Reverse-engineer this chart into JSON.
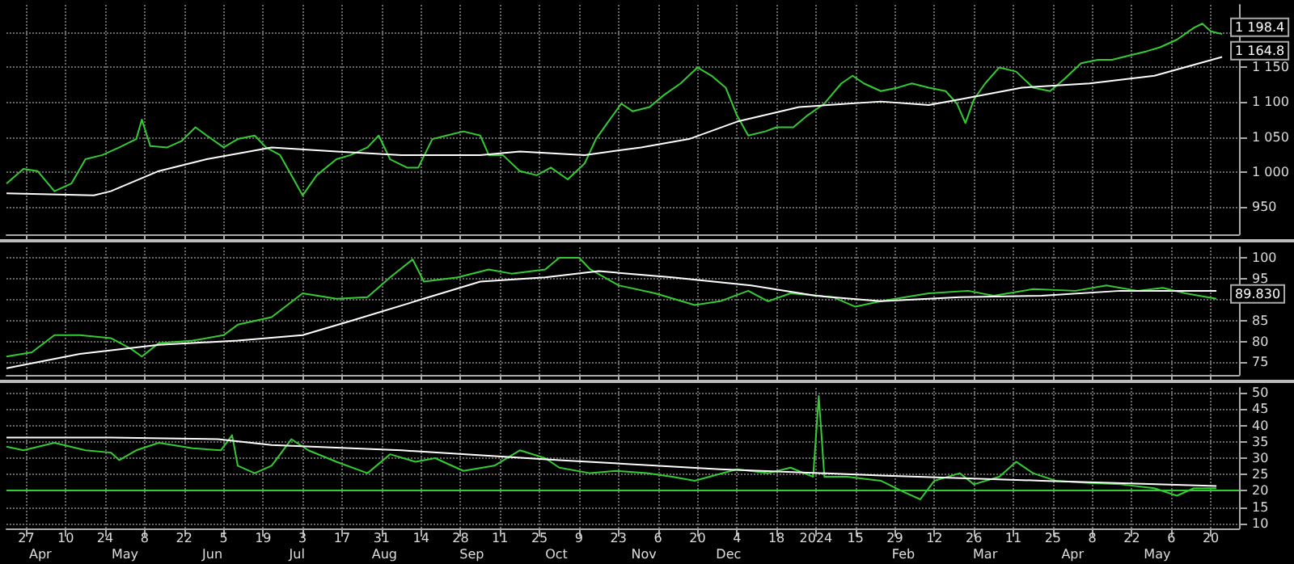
{
  "chart_data": [
    {
      "type": "line",
      "xlim": [
        "2023-03-20",
        "2024-05-30"
      ],
      "ylim": [
        910,
        1240
      ],
      "grid": true,
      "tick_labels": "y",
      "xticks": [
        {
          "value": "2023-03-27",
          "label": null
        },
        {
          "value": "2023-04-10",
          "label": null
        },
        {
          "value": "2023-04-24",
          "label": null
        },
        {
          "value": "2023-05-08",
          "label": null
        },
        {
          "value": "2023-05-22",
          "label": null
        },
        {
          "value": "2023-06-05",
          "label": null
        },
        {
          "value": "2023-06-19",
          "label": null
        },
        {
          "value": "2023-07-03",
          "label": null
        },
        {
          "value": "2023-07-17",
          "label": null
        },
        {
          "value": "2023-07-31",
          "label": null
        },
        {
          "value": "2023-08-14",
          "label": null
        },
        {
          "value": "2023-08-28",
          "label": null
        },
        {
          "value": "2023-09-11",
          "label": null
        },
        {
          "value": "2023-09-25",
          "label": null
        },
        {
          "value": "2023-10-09",
          "label": null
        },
        {
          "value": "2023-10-23",
          "label": null
        },
        {
          "value": "2023-11-06",
          "label": null
        },
        {
          "value": "2023-11-20",
          "label": null
        },
        {
          "value": "2023-12-04",
          "label": null
        },
        {
          "value": "2023-12-18",
          "label": null
        },
        {
          "value": "2024-01-01",
          "label": null
        },
        {
          "value": "2024-01-15",
          "label": null
        },
        {
          "value": "2024-01-29",
          "label": null
        },
        {
          "value": "2024-02-12",
          "label": null
        },
        {
          "value": "2024-02-26",
          "label": null
        },
        {
          "value": "2024-03-11",
          "label": null
        },
        {
          "value": "2024-03-25",
          "label": null
        },
        {
          "value": "2024-04-08",
          "label": null
        },
        {
          "value": "2024-04-22",
          "label": null
        },
        {
          "value": "2024-05-06",
          "label": null
        },
        {
          "value": "2024-05-20",
          "label": null
        }
      ],
      "yticks": [
        950,
        {
          "value": 1000,
          "label": "1 000"
        },
        {
          "value": 1050,
          "label": "1 050"
        },
        {
          "value": 1100,
          "label": "1 100"
        },
        {
          "value": 1150,
          "label": "1 150"
        },
        {
          "value": 1200,
          "label": null
        }
      ],
      "annotations": [
        {
          "text": "1 198.4",
          "x": "2024-05-24",
          "y": 1198.4
        },
        {
          "text": "1 164.8",
          "x": "2024-05-24",
          "y": 1164.8
        }
      ],
      "series": [
        {
          "color": "#33cc33",
          "x": [
            "2023-03-20",
            "2023-03-26",
            "2023-03-31",
            "2023-04-06",
            "2023-04-12",
            "2023-04-17",
            "2023-04-23",
            "2023-04-29",
            "2023-05-05",
            "2023-05-07",
            "2023-05-10",
            "2023-05-16",
            "2023-05-21",
            "2023-05-26",
            "2023-05-30",
            "2023-06-05",
            "2023-06-10",
            "2023-06-16",
            "2023-06-20",
            "2023-06-25",
            "2023-06-29",
            "2023-07-03",
            "2023-07-08",
            "2023-07-15",
            "2023-07-20",
            "2023-07-26",
            "2023-07-30",
            "2023-08-03",
            "2023-08-09",
            "2023-08-13",
            "2023-08-18",
            "2023-08-23",
            "2023-08-29",
            "2023-09-04",
            "2023-09-07",
            "2023-09-12",
            "2023-09-18",
            "2023-09-24",
            "2023-09-29",
            "2023-10-05",
            "2023-10-11",
            "2023-10-15",
            "2023-10-19",
            "2023-10-24",
            "2023-10-28",
            "2023-11-03",
            "2023-11-08",
            "2023-11-14",
            "2023-11-20",
            "2023-11-25",
            "2023-11-30",
            "2023-12-04",
            "2023-12-08",
            "2023-12-14",
            "2023-12-18",
            "2023-12-24",
            "2023-12-29",
            "2024-01-04",
            "2024-01-10",
            "2024-01-14",
            "2024-01-18",
            "2024-01-24",
            "2024-01-30",
            "2024-02-04",
            "2024-02-10",
            "2024-02-16",
            "2024-02-20",
            "2024-02-23",
            "2024-02-26",
            "2024-03-01",
            "2024-03-06",
            "2024-03-12",
            "2024-03-18",
            "2024-03-24",
            "2024-03-29",
            "2024-04-04",
            "2024-04-10",
            "2024-04-15",
            "2024-04-21",
            "2024-04-27",
            "2024-05-02",
            "2024-05-08",
            "2024-05-14",
            "2024-05-17",
            "2024-05-20",
            "2024-05-24"
          ],
          "values": [
            983,
            1004,
            1001,
            972,
            983,
            1018,
            1024,
            1035,
            1047,
            1075,
            1037,
            1035,
            1044,
            1064,
            1052,
            1035,
            1047,
            1052,
            1035,
            1024,
            995,
            966,
            995,
            1018,
            1024,
            1035,
            1052,
            1018,
            1006,
            1006,
            1047,
            1052,
            1058,
            1052,
            1024,
            1024,
            1001,
            995,
            1006,
            989,
            1012,
            1047,
            1070,
            1098,
            1087,
            1093,
            1110,
            1127,
            1150,
            1138,
            1121,
            1081,
            1052,
            1058,
            1064,
            1064,
            1081,
            1098,
            1127,
            1138,
            1127,
            1116,
            1121,
            1127,
            1121,
            1116,
            1098,
            1070,
            1104,
            1127,
            1150,
            1144,
            1121,
            1116,
            1133,
            1156,
            1161,
            1161,
            1167,
            1173,
            1179,
            1190,
            1207,
            1213,
            1202,
            1198
          ]
        },
        {
          "color": "#ffffff",
          "x": [
            "2023-03-20",
            "2023-04-20",
            "2023-04-26",
            "2023-05-13",
            "2023-05-30",
            "2023-06-22",
            "2023-07-15",
            "2023-08-07",
            "2023-09-04",
            "2023-09-18",
            "2023-10-11",
            "2023-10-31",
            "2023-11-17",
            "2023-12-04",
            "2023-12-26",
            "2024-01-24",
            "2024-02-10",
            "2024-02-21",
            "2024-03-14",
            "2024-04-07",
            "2024-04-30",
            "2024-05-24"
          ],
          "values": [
            969,
            966,
            972,
            1001,
            1018,
            1035,
            1029,
            1024,
            1024,
            1029,
            1024,
            1035,
            1047,
            1072,
            1093,
            1101,
            1096,
            1104,
            1121,
            1127,
            1138,
            1165
          ]
        }
      ]
    },
    {
      "type": "line",
      "xlim": [
        "2023-03-20",
        "2024-05-30"
      ],
      "ylim": [
        72,
        102.5
      ],
      "grid": true,
      "tick_labels": "y",
      "xticks": [
        {
          "value": "2023-03-27",
          "label": null
        },
        {
          "value": "2023-04-10",
          "label": null
        },
        {
          "value": "2023-04-24",
          "label": null
        },
        {
          "value": "2023-05-08",
          "label": null
        },
        {
          "value": "2023-05-22",
          "label": null
        },
        {
          "value": "2023-06-05",
          "label": null
        },
        {
          "value": "2023-06-19",
          "label": null
        },
        {
          "value": "2023-07-03",
          "label": null
        },
        {
          "value": "2023-07-17",
          "label": null
        },
        {
          "value": "2023-07-31",
          "label": null
        },
        {
          "value": "2023-08-14",
          "label": null
        },
        {
          "value": "2023-08-28",
          "label": null
        },
        {
          "value": "2023-09-11",
          "label": null
        },
        {
          "value": "2023-09-25",
          "label": null
        },
        {
          "value": "2023-10-09",
          "label": null
        },
        {
          "value": "2023-10-23",
          "label": null
        },
        {
          "value": "2023-11-06",
          "label": null
        },
        {
          "value": "2023-11-20",
          "label": null
        },
        {
          "value": "2023-12-04",
          "label": null
        },
        {
          "value": "2023-12-18",
          "label": null
        },
        {
          "value": "2024-01-01",
          "label": null
        },
        {
          "value": "2024-01-15",
          "label": null
        },
        {
          "value": "2024-01-29",
          "label": null
        },
        {
          "value": "2024-02-12",
          "label": null
        },
        {
          "value": "2024-02-26",
          "label": null
        },
        {
          "value": "2024-03-11",
          "label": null
        },
        {
          "value": "2024-03-25",
          "label": null
        },
        {
          "value": "2024-04-08",
          "label": null
        },
        {
          "value": "2024-04-22",
          "label": null
        },
        {
          "value": "2024-05-06",
          "label": null
        },
        {
          "value": "2024-05-20",
          "label": null
        }
      ],
      "yticks": [
        75,
        80,
        85,
        {
          "value": 90,
          "label": null
        },
        95,
        100
      ],
      "annotations": [
        {
          "text": "89.830",
          "x": "2024-05-24",
          "y": 89.83
        }
      ],
      "series": [
        {
          "color": "#33cc33",
          "x": [
            "2023-03-20",
            "2023-03-29",
            "2023-04-06",
            "2023-04-15",
            "2023-04-26",
            "2023-05-03",
            "2023-05-07",
            "2023-05-13",
            "2023-05-25",
            "2023-06-05",
            "2023-06-10",
            "2023-06-22",
            "2023-07-03",
            "2023-07-15",
            "2023-07-26",
            "2023-08-03",
            "2023-08-11",
            "2023-08-15",
            "2023-08-27",
            "2023-09-07",
            "2023-09-15",
            "2023-09-27",
            "2023-10-02",
            "2023-10-09",
            "2023-10-13",
            "2023-10-23",
            "2023-11-05",
            "2023-11-19",
            "2023-11-28",
            "2023-12-08",
            "2023-12-15",
            "2023-12-23",
            "2024-01-07",
            "2024-01-15",
            "2024-01-24",
            "2024-02-10",
            "2024-02-24",
            "2024-03-04",
            "2024-03-18",
            "2024-04-02",
            "2024-04-13",
            "2024-04-24",
            "2024-05-03",
            "2024-05-11",
            "2024-05-22"
          ],
          "values": [
            76.4,
            77.4,
            81.5,
            81.5,
            80.8,
            78.3,
            76.4,
            79.6,
            80.2,
            81.5,
            84,
            85.8,
            91.5,
            90.2,
            90.6,
            95.3,
            99.6,
            94.3,
            95.3,
            97.2,
            96.2,
            97.2,
            100,
            100,
            97.2,
            93.4,
            91.5,
            88.7,
            89.6,
            92.1,
            89.6,
            91.5,
            90.6,
            88.3,
            89.6,
            91.5,
            92.1,
            90.9,
            92.5,
            92.1,
            93.4,
            92.1,
            92.8,
            91.5,
            90.2
          ]
        },
        {
          "color": "#ffffff",
          "x": [
            "2023-03-20",
            "2023-04-15",
            "2023-05-13",
            "2023-06-10",
            "2023-07-03",
            "2023-07-20",
            "2023-08-12",
            "2023-09-04",
            "2023-09-27",
            "2023-10-16",
            "2023-11-11",
            "2023-12-09",
            "2024-01-01",
            "2024-01-24",
            "2024-02-21",
            "2024-03-21",
            "2024-04-18",
            "2024-05-22"
          ],
          "values": [
            73.6,
            77,
            79.2,
            80.2,
            81.5,
            84.9,
            89.6,
            94.3,
            95.3,
            96.8,
            95.3,
            93.4,
            90.9,
            89.6,
            90.6,
            90.9,
            92.1,
            92.1
          ]
        }
      ]
    },
    {
      "type": "line",
      "xlim": [
        "2023-03-20",
        "2024-05-30"
      ],
      "ylim": [
        8.5,
        51.5
      ],
      "grid": true,
      "xticks": [
        {
          "value": "2023-03-27",
          "label": "27"
        },
        {
          "value": "2023-04-10",
          "label": "10"
        },
        {
          "value": "2023-04-24",
          "label": "24"
        },
        {
          "value": "2023-05-08",
          "label": "8"
        },
        {
          "value": "2023-05-22",
          "label": "22"
        },
        {
          "value": "2023-06-05",
          "label": "5"
        },
        {
          "value": "2023-06-19",
          "label": "19"
        },
        {
          "value": "2023-07-03",
          "label": "3"
        },
        {
          "value": "2023-07-17",
          "label": "17"
        },
        {
          "value": "2023-07-31",
          "label": "31"
        },
        {
          "value": "2023-08-14",
          "label": "14"
        },
        {
          "value": "2023-08-28",
          "label": "28"
        },
        {
          "value": "2023-09-11",
          "label": "11"
        },
        {
          "value": "2023-09-25",
          "label": "25"
        },
        {
          "value": "2023-10-09",
          "label": "9"
        },
        {
          "value": "2023-10-23",
          "label": "23"
        },
        {
          "value": "2023-11-06",
          "label": "6"
        },
        {
          "value": "2023-11-20",
          "label": "20"
        },
        {
          "value": "2023-12-04",
          "label": "4"
        },
        {
          "value": "2023-12-18",
          "label": "18"
        },
        {
          "value": "2024-01-01",
          "label": "2024"
        },
        {
          "value": "2024-01-15",
          "label": "15"
        },
        {
          "value": "2024-01-29",
          "label": "29"
        },
        {
          "value": "2024-02-12",
          "label": "12"
        },
        {
          "value": "2024-02-26",
          "label": "26"
        },
        {
          "value": "2024-03-11",
          "label": "11"
        },
        {
          "value": "2024-03-25",
          "label": "25"
        },
        {
          "value": "2024-04-08",
          "label": "8"
        },
        {
          "value": "2024-04-22",
          "label": "22"
        },
        {
          "value": "2024-05-06",
          "label": "6"
        },
        {
          "value": "2024-05-20",
          "label": "20"
        }
      ],
      "yticks": [
        10,
        15,
        20,
        25,
        30,
        35,
        40,
        45,
        50
      ],
      "ref_lines": [
        {
          "axis": "y",
          "value": 20,
          "color": "#33cc33"
        }
      ],
      "x2lim": [
        "2023-03-20",
        "2024-05-30"
      ],
      "x2ticks": [
        {
          "value": "2023-04-01",
          "label": "Apr"
        },
        {
          "value": "2023-05-01",
          "label": "May"
        },
        {
          "value": "2023-06-01",
          "label": "Jun"
        },
        {
          "value": "2023-07-01",
          "label": "Jul"
        },
        {
          "value": "2023-08-01",
          "label": "Aug"
        },
        {
          "value": "2023-09-01",
          "label": "Sep"
        },
        {
          "value": "2023-10-01",
          "label": "Oct"
        },
        {
          "value": "2023-11-01",
          "label": "Nov"
        },
        {
          "value": "2023-12-01",
          "label": "Dec"
        },
        {
          "value": "2024-02-01",
          "label": "Feb"
        },
        {
          "value": "2024-03-01",
          "label": "Mar"
        },
        {
          "value": "2024-04-01",
          "label": "Apr"
        },
        {
          "value": "2024-05-01",
          "label": "May"
        }
      ],
      "series": [
        {
          "color": "#33cc33",
          "x": [
            "2023-03-20",
            "2023-03-26",
            "2023-04-06",
            "2023-04-17",
            "2023-04-26",
            "2023-04-29",
            "2023-05-05",
            "2023-05-13",
            "2023-05-25",
            "2023-06-04",
            "2023-06-08",
            "2023-06-10",
            "2023-06-16",
            "2023-06-22",
            "2023-06-29",
            "2023-07-05",
            "2023-07-15",
            "2023-07-26",
            "2023-08-03",
            "2023-08-12",
            "2023-08-19",
            "2023-08-29",
            "2023-09-09",
            "2023-09-18",
            "2023-09-27",
            "2023-10-02",
            "2023-10-13",
            "2023-10-22",
            "2023-11-02",
            "2023-11-11",
            "2023-11-19",
            "2023-12-04",
            "2023-12-15",
            "2023-12-23",
            "2023-12-31",
            "2024-01-02",
            "2024-01-04",
            "2024-01-12",
            "2024-01-24",
            "2024-02-01",
            "2024-02-07",
            "2024-02-12",
            "2024-02-21",
            "2024-02-26",
            "2024-03-06",
            "2024-03-12",
            "2024-03-18",
            "2024-03-26",
            "2024-04-07",
            "2024-04-18",
            "2024-04-30",
            "2024-05-08",
            "2024-05-14",
            "2024-05-22"
          ],
          "values": [
            33.5,
            32.4,
            34.7,
            32.4,
            31.7,
            29.4,
            32.4,
            34.7,
            33,
            32.4,
            37,
            27.7,
            25.4,
            27.7,
            35.8,
            32.4,
            28.9,
            25.4,
            31.2,
            28.9,
            30,
            26.1,
            27.7,
            32.4,
            30,
            27.1,
            25.4,
            26.1,
            25.4,
            24.3,
            23.1,
            26.6,
            25.4,
            27.1,
            24.3,
            49,
            24.3,
            24.3,
            23.1,
            19.7,
            17.4,
            23.1,
            25.4,
            22,
            24.3,
            28.9,
            25.4,
            23.1,
            22.4,
            22,
            20.8,
            18.5,
            20.8,
            20.8
          ]
        },
        {
          "color": "#ffffff",
          "x": [
            "2023-03-20",
            "2023-04-26",
            "2023-06-03",
            "2023-06-22",
            "2023-08-07",
            "2023-10-02",
            "2023-11-28",
            "2024-01-24",
            "2024-03-21",
            "2024-05-22"
          ],
          "values": [
            36.3,
            36.3,
            35.8,
            34,
            32.4,
            29.4,
            26.6,
            24.7,
            23.1,
            21.5
          ]
        }
      ]
    }
  ]
}
